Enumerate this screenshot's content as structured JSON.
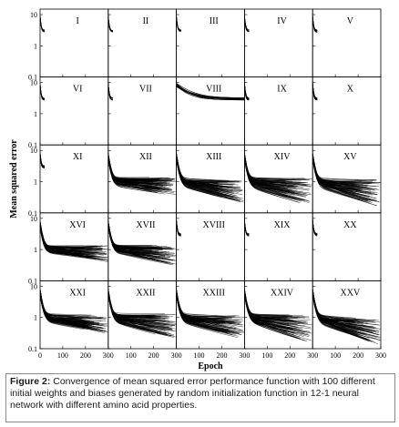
{
  "chart_data": {
    "type": "line",
    "layout": "grid 5x5 small multiples",
    "xlabel": "Epoch",
    "ylabel": "Mean squared error",
    "x_ticks": [
      "0",
      "100",
      "200",
      "300"
    ],
    "y_ticks": [
      "0.1",
      "1",
      "10"
    ],
    "y_scale": "log",
    "xlim": [
      0,
      300
    ],
    "ylim": [
      0.1,
      15
    ],
    "curves_per_panel": 100,
    "panels": [
      {
        "label": "I",
        "type": "short",
        "stop_epoch": 20,
        "start_mse": 8,
        "end_mse": 3
      },
      {
        "label": "II",
        "type": "short",
        "stop_epoch": 20,
        "start_mse": 8,
        "end_mse": 3
      },
      {
        "label": "III",
        "type": "short",
        "stop_epoch": 20,
        "start_mse": 8,
        "end_mse": 3
      },
      {
        "label": "IV",
        "type": "short",
        "stop_epoch": 20,
        "start_mse": 8,
        "end_mse": 3
      },
      {
        "label": "V",
        "type": "short",
        "stop_epoch": 20,
        "start_mse": 8,
        "end_mse": 3
      },
      {
        "label": "VI",
        "type": "short",
        "stop_epoch": 20,
        "start_mse": 8,
        "end_mse": 3
      },
      {
        "label": "VII",
        "type": "short",
        "stop_epoch": 20,
        "start_mse": 8,
        "end_mse": 3
      },
      {
        "label": "VIII",
        "type": "short",
        "stop_epoch": 300,
        "start_mse": 8,
        "end_mse": 3
      },
      {
        "label": "IX",
        "type": "short",
        "stop_epoch": 20,
        "start_mse": 8,
        "end_mse": 3
      },
      {
        "label": "X",
        "type": "short",
        "stop_epoch": 20,
        "start_mse": 8,
        "end_mse": 3
      },
      {
        "label": "XI",
        "type": "short",
        "stop_epoch": 20,
        "start_mse": 8,
        "end_mse": 3
      },
      {
        "label": "XII",
        "type": "long",
        "start_mse": 6,
        "end_low": 0.35,
        "end_high": 1.4
      },
      {
        "label": "XIII",
        "type": "long",
        "start_mse": 6,
        "end_low": 0.2,
        "end_high": 1.1
      },
      {
        "label": "XIV",
        "type": "long",
        "start_mse": 6,
        "end_low": 0.15,
        "end_high": 1.3
      },
      {
        "label": "XV",
        "type": "long",
        "start_mse": 6,
        "end_low": 0.15,
        "end_high": 1.2
      },
      {
        "label": "XVI",
        "type": "long",
        "start_mse": 6,
        "end_low": 0.4,
        "end_high": 1.4
      },
      {
        "label": "XVII",
        "type": "long",
        "start_mse": 6,
        "end_low": 0.3,
        "end_high": 1.4
      },
      {
        "label": "XVIII",
        "type": "short",
        "stop_epoch": 20,
        "start_mse": 8,
        "end_mse": 3
      },
      {
        "label": "XIX",
        "type": "short",
        "stop_epoch": 20,
        "start_mse": 8,
        "end_mse": 3
      },
      {
        "label": "XX",
        "type": "short",
        "stop_epoch": 20,
        "start_mse": 8,
        "end_mse": 3
      },
      {
        "label": "XXI",
        "type": "long",
        "start_mse": 6,
        "end_low": 0.3,
        "end_high": 1.2
      },
      {
        "label": "XXII",
        "type": "long",
        "start_mse": 6,
        "end_low": 0.2,
        "end_high": 1.3
      },
      {
        "label": "XXIII",
        "type": "long",
        "start_mse": 6,
        "end_low": 0.2,
        "end_high": 1.2
      },
      {
        "label": "XXIV",
        "type": "long",
        "start_mse": 6,
        "end_low": 0.15,
        "end_high": 1.2
      },
      {
        "label": "XXV",
        "type": "long",
        "start_mse": 6,
        "end_low": 0.12,
        "end_high": 0.9
      }
    ]
  },
  "caption": {
    "label": "Figure 2:",
    "text": " Convergence of mean squared error performance function with 100 different initial weights and biases generated by random initialization function in 12-1 neural network with different amino acid properties."
  }
}
